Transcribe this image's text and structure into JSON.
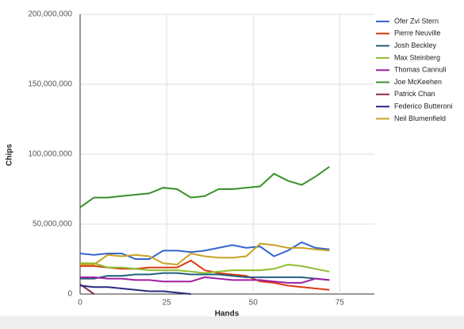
{
  "chart_data": {
    "type": "line",
    "x_label": "Hands",
    "y_label": "Chips",
    "x": [
      0,
      4,
      8,
      12,
      16,
      20,
      24,
      28,
      32,
      36,
      40,
      44,
      48,
      52,
      56,
      60,
      64,
      68,
      72
    ],
    "xlim": [
      0,
      85
    ],
    "xticks": [
      0,
      25,
      50,
      75
    ],
    "ylim": [
      0,
      200000000
    ],
    "yticks": [
      {
        "value": 0,
        "label": "0"
      },
      {
        "value": 50000000,
        "label": "50,000,000"
      },
      {
        "value": 100000000,
        "label": "100,000,000"
      },
      {
        "value": 150000000,
        "label": "150,000,000"
      },
      {
        "value": 200000000,
        "label": "200,000,000"
      }
    ],
    "grid": true,
    "legend": "right",
    "series": [
      {
        "name": "Ofer Zvi Stern",
        "color": "#3366cc",
        "values": [
          29000000,
          28000000,
          29000000,
          29000000,
          25000000,
          25000000,
          31000000,
          31000000,
          30000000,
          31000000,
          33000000,
          35000000,
          33000000,
          34000000,
          27000000,
          31000000,
          37000000,
          33000000,
          32000000
        ]
      },
      {
        "name": "Pierre Neuville",
        "color": "#dc3912",
        "values": [
          20000000,
          20000000,
          19000000,
          18000000,
          18000000,
          19000000,
          19000000,
          19000000,
          24000000,
          17000000,
          15000000,
          14000000,
          13000000,
          9000000,
          8000000,
          6000000,
          5000000,
          4000000,
          3000000
        ]
      },
      {
        "name": "Josh Beckley",
        "color": "#22607e",
        "values": [
          11000000,
          11000000,
          13000000,
          13000000,
          14000000,
          14000000,
          15000000,
          15000000,
          14000000,
          14000000,
          14000000,
          13000000,
          12000000,
          12000000,
          12000000,
          12000000,
          12000000,
          11000000,
          10000000
        ]
      },
      {
        "name": "Max Steinberg",
        "color": "#8fbd2f",
        "values": [
          22000000,
          22000000,
          19000000,
          19000000,
          18000000,
          17000000,
          17000000,
          17000000,
          16000000,
          15000000,
          16000000,
          17000000,
          17000000,
          17000000,
          18000000,
          21000000,
          20000000,
          18000000,
          16000000
        ]
      },
      {
        "name": "Thomas Cannuli",
        "color": "#a11fa1",
        "values": [
          12000000,
          12000000,
          11000000,
          11000000,
          10000000,
          10000000,
          9000000,
          9000000,
          9000000,
          12000000,
          11000000,
          10000000,
          10000000,
          10000000,
          9000000,
          8000000,
          8000000,
          11000000,
          10000000
        ]
      },
      {
        "name": "Joe McKeehen",
        "color": "#3a8f2c",
        "values": [
          62000000,
          69000000,
          69000000,
          70000000,
          71000000,
          72000000,
          76000000,
          75000000,
          69000000,
          70000000,
          75000000,
          75000000,
          76000000,
          77000000,
          86000000,
          81000000,
          78000000,
          84000000,
          91000000
        ]
      },
      {
        "name": "Patrick Chan",
        "color": "#8a2f4f",
        "values": [
          7000000,
          0,
          null,
          null,
          null,
          null,
          null,
          null,
          null,
          null,
          null,
          null,
          null,
          null,
          null,
          null,
          null,
          null,
          null
        ]
      },
      {
        "name": "Federico Butteroni",
        "color": "#2a2a80",
        "values": [
          6000000,
          5000000,
          5000000,
          4000000,
          3000000,
          2000000,
          2000000,
          1000000,
          0,
          null,
          null,
          null,
          null,
          null,
          null,
          null,
          null,
          null,
          null
        ]
      },
      {
        "name": "Neil Blumenfield",
        "color": "#c9a227",
        "values": [
          21000000,
          21000000,
          28000000,
          27000000,
          28000000,
          27000000,
          22000000,
          21000000,
          29000000,
          27000000,
          26000000,
          26000000,
          27000000,
          36000000,
          35000000,
          33000000,
          33000000,
          32000000,
          31000000
        ]
      }
    ]
  }
}
